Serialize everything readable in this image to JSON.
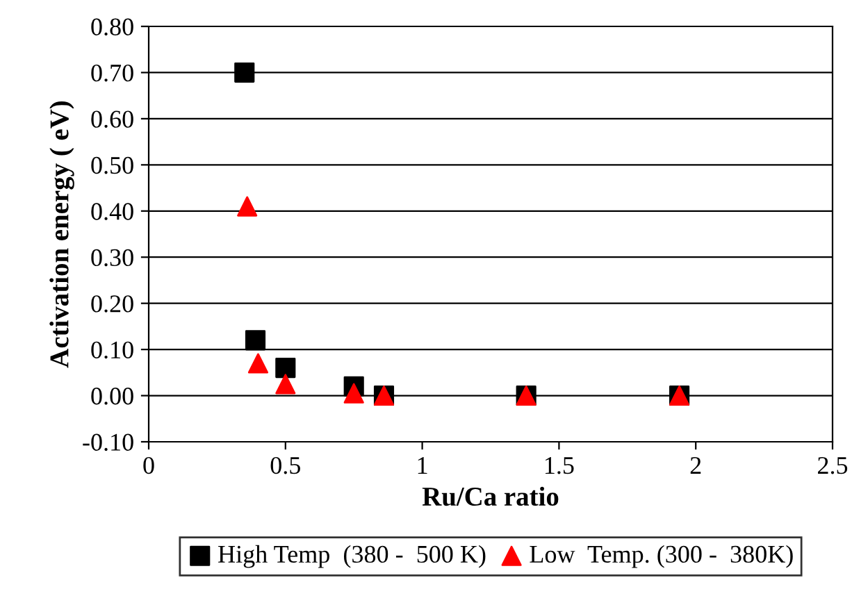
{
  "chart_data": {
    "type": "scatter",
    "xlabel": "Ru/Ca ratio",
    "ylabel": "Activation energy ( eV)",
    "xlim": [
      0,
      2.5
    ],
    "xticks": [
      0,
      0.5,
      1,
      1.5,
      2,
      2.5
    ],
    "ylim": [
      -0.1,
      0.8
    ],
    "yticks": [
      {
        "value": -0.1,
        "label": "-0.10"
      },
      {
        "value": 0,
        "label": "0.00"
      },
      {
        "value": 0.1,
        "label": "0.10"
      },
      {
        "value": 0.2,
        "label": "0.20"
      },
      {
        "value": 0.3,
        "label": "0.30"
      },
      {
        "value": 0.4,
        "label": "0.40"
      },
      {
        "value": 0.5,
        "label": "0.50"
      },
      {
        "value": 0.6,
        "label": "0.60"
      },
      {
        "value": 0.7,
        "label": "0.70"
      },
      {
        "value": 0.8,
        "label": "0.80"
      }
    ],
    "grid": "y",
    "legend": "bottom",
    "series": [
      {
        "name": "High Temp  (380 -  500 K)",
        "color": "#000000",
        "marker": "square",
        "x": [
          0.35,
          0.39,
          0.5,
          0.75,
          0.86,
          1.38,
          1.94
        ],
        "values": [
          0.7,
          0.12,
          0.06,
          0.02,
          0.0,
          0.0,
          0.0
        ]
      },
      {
        "name": "Low  Temp. (300 -  380K)",
        "color": "#ff0000",
        "marker": "triangle",
        "x": [
          0.36,
          0.4,
          0.5,
          0.75,
          0.86,
          1.38,
          1.94
        ],
        "values": [
          0.41,
          0.07,
          0.025,
          0.005,
          0.0,
          0.0,
          0.0
        ]
      }
    ]
  }
}
